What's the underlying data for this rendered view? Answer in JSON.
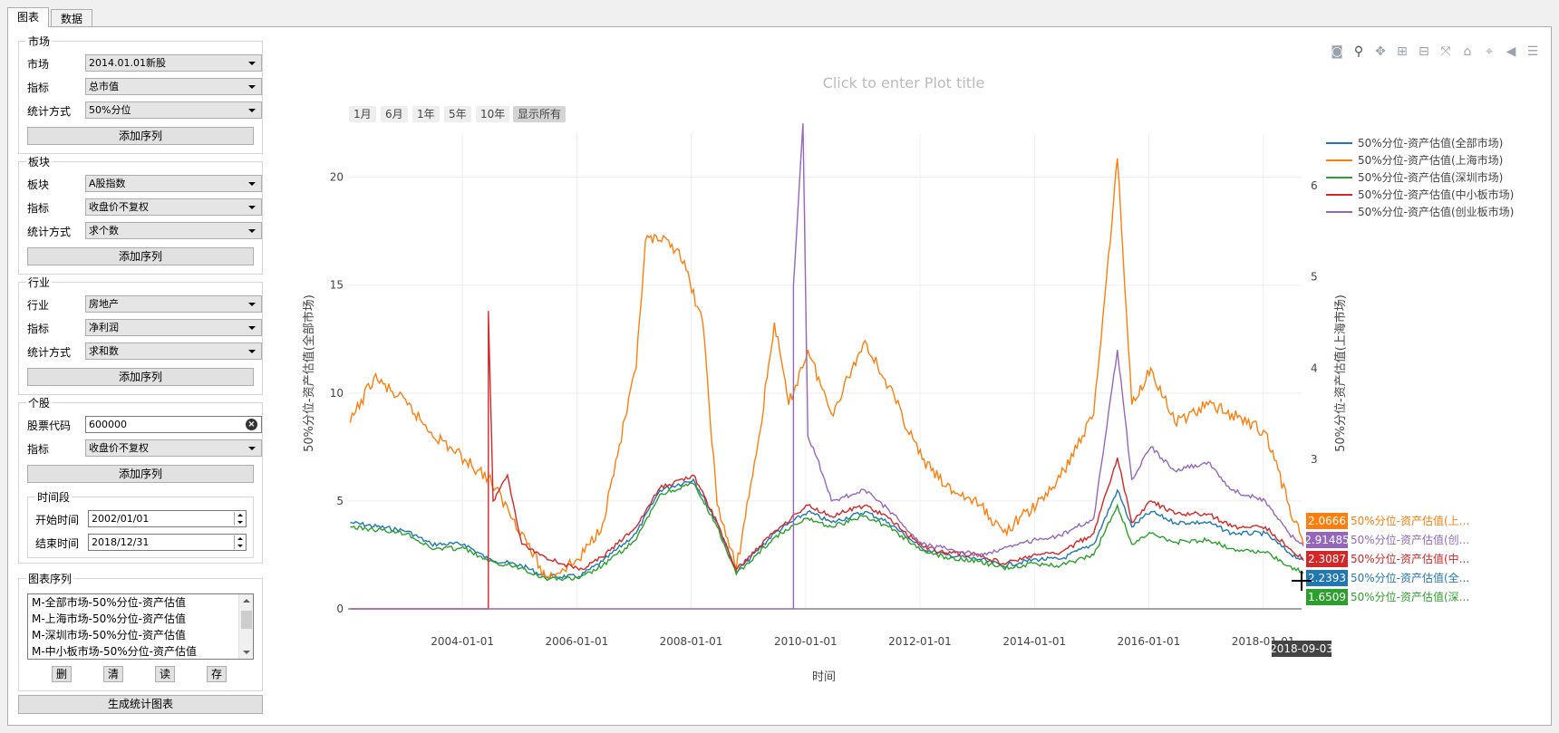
{
  "tabs": [
    "图表",
    "数据"
  ],
  "market": {
    "title": "市场",
    "rows": [
      {
        "label": "市场",
        "value": "2014.01.01新股"
      },
      {
        "label": "指标",
        "value": "总市值"
      },
      {
        "label": "统计方式",
        "value": "50%分位"
      }
    ],
    "add_label": "添加序列"
  },
  "sector": {
    "title": "板块",
    "rows": [
      {
        "label": "板块",
        "value": "A股指数"
      },
      {
        "label": "指标",
        "value": "收盘价不复权"
      },
      {
        "label": "统计方式",
        "value": "求个数"
      }
    ],
    "add_label": "添加序列"
  },
  "industry": {
    "title": "行业",
    "rows": [
      {
        "label": "行业",
        "value": "房地产"
      },
      {
        "label": "指标",
        "value": "净利润"
      },
      {
        "label": "统计方式",
        "value": "求和数"
      }
    ],
    "add_label": "添加序列"
  },
  "stock": {
    "title": "个股",
    "code_label": "股票代码",
    "code_value": "600000",
    "metric_label": "指标",
    "metric_value": "收盘价不复权",
    "add_label": "添加序列",
    "period": {
      "title": "时间段",
      "start_label": "开始时间",
      "start_value": "2002/01/01",
      "end_label": "结束时间",
      "end_value": "2018/12/31"
    }
  },
  "series_group": {
    "title": "图表序列",
    "items": [
      "M-全部市场-50%分位-资产估值",
      "M-上海市场-50%分位-资产估值",
      "M-深圳市场-50%分位-资产估值",
      "M-中小板市场-50%分位-资产估值"
    ],
    "buttons": [
      "删",
      "清",
      "读",
      "存"
    ]
  },
  "generate_label": "生成统计图表",
  "toolbar_icons": [
    "camera-icon",
    "zoom-icon",
    "pan-icon",
    "zoom-in-icon",
    "zoom-out-icon",
    "autoscale-icon",
    "home-icon",
    "spike-icon",
    "hover-closest-icon",
    "hover-compare-icon"
  ],
  "plot_title_placeholder": "Click to enter Plot title",
  "range_buttons": [
    "1月",
    "6月",
    "1年",
    "5年",
    "10年",
    "显示所有"
  ],
  "chart_data": {
    "type": "line",
    "title": "",
    "xlabel": "时间",
    "ylabel_left": "50%分位-资产估值(全部市场)",
    "ylabel_right": "50%分位-资产估值(上海市场)",
    "x_ticks": [
      "2004-01-01",
      "2006-01-01",
      "2008-01-01",
      "2010-01-01",
      "2012-01-01",
      "2014-01-01",
      "2016-01-01",
      "2018-01-01"
    ],
    "y_left_ticks": [
      0,
      5,
      10,
      15,
      20
    ],
    "y_right_ticks": [
      3,
      4,
      5,
      6
    ],
    "xlim": [
      "2002-01-01",
      "2018-09-03"
    ],
    "ylim_left": [
      0,
      22
    ],
    "grid": true,
    "legend_position": "top-right",
    "hover_date": "2018-09-03",
    "series": [
      {
        "name": "50%分位-资产估值(全部市场)",
        "color": "#1f77b4",
        "axis": "left",
        "hover_value": "2.2393",
        "hover_label": "50%分位-资产估值(全...",
        "points": [
          [
            "2002-01",
            4.0
          ],
          [
            "2003-01",
            3.6
          ],
          [
            "2003-06",
            3.0
          ],
          [
            "2004-01",
            3.0
          ],
          [
            "2004-06",
            2.3
          ],
          [
            "2005-01",
            2.0
          ],
          [
            "2005-06",
            1.5
          ],
          [
            "2006-01",
            1.5
          ],
          [
            "2006-06",
            2.2
          ],
          [
            "2007-01",
            3.5
          ],
          [
            "2007-06",
            5.5
          ],
          [
            "2008-01",
            6.0
          ],
          [
            "2008-06",
            4.0
          ],
          [
            "2008-10",
            1.7
          ],
          [
            "2009-06",
            3.5
          ],
          [
            "2010-01",
            4.5
          ],
          [
            "2010-06",
            4.0
          ],
          [
            "2011-01",
            4.5
          ],
          [
            "2011-06",
            4.0
          ],
          [
            "2012-01",
            2.8
          ],
          [
            "2012-06",
            2.5
          ],
          [
            "2013-01",
            2.3
          ],
          [
            "2013-06",
            2.0
          ],
          [
            "2014-01",
            2.3
          ],
          [
            "2014-06",
            2.3
          ],
          [
            "2015-01",
            3.0
          ],
          [
            "2015-06",
            5.5
          ],
          [
            "2015-09",
            3.8
          ],
          [
            "2016-01",
            4.5
          ],
          [
            "2016-06",
            4.0
          ],
          [
            "2017-01",
            4.0
          ],
          [
            "2017-06",
            3.5
          ],
          [
            "2018-01",
            3.5
          ],
          [
            "2018-06",
            2.6
          ],
          [
            "2018-09",
            2.24
          ]
        ]
      },
      {
        "name": "50%分位-资产估值(上海市场)",
        "color": "#ff7f0e",
        "axis": "right",
        "hover_value": "2.0666",
        "hover_label": "50%分位-资产估值(上...",
        "points": [
          [
            "2002-01",
            3.4
          ],
          [
            "2002-06",
            3.9
          ],
          [
            "2003-01",
            3.6
          ],
          [
            "2003-06",
            3.3
          ],
          [
            "2004-01",
            3.0
          ],
          [
            "2004-06",
            2.8
          ],
          [
            "2005-01",
            2.2
          ],
          [
            "2005-06",
            1.7
          ],
          [
            "2006-01",
            1.9
          ],
          [
            "2006-06",
            2.3
          ],
          [
            "2007-01",
            4.0
          ],
          [
            "2007-03",
            5.4
          ],
          [
            "2007-06",
            5.4
          ],
          [
            "2007-10",
            5.3
          ],
          [
            "2008-03",
            4.5
          ],
          [
            "2008-06",
            2.5
          ],
          [
            "2008-10",
            1.8
          ],
          [
            "2009-03",
            3.3
          ],
          [
            "2009-06",
            4.5
          ],
          [
            "2009-09",
            3.6
          ],
          [
            "2010-01",
            4.2
          ],
          [
            "2010-06",
            3.5
          ],
          [
            "2011-01",
            4.3
          ],
          [
            "2011-06",
            3.8
          ],
          [
            "2012-01",
            3.0
          ],
          [
            "2012-06",
            2.7
          ],
          [
            "2013-01",
            2.5
          ],
          [
            "2013-06",
            2.2
          ],
          [
            "2014-01",
            2.5
          ],
          [
            "2014-06",
            2.8
          ],
          [
            "2015-01",
            3.5
          ],
          [
            "2015-06",
            6.3
          ],
          [
            "2015-09",
            3.6
          ],
          [
            "2016-01",
            4.0
          ],
          [
            "2016-06",
            3.4
          ],
          [
            "2017-01",
            3.6
          ],
          [
            "2017-06",
            3.5
          ],
          [
            "2018-01",
            3.3
          ],
          [
            "2018-06",
            2.5
          ],
          [
            "2018-09",
            2.07
          ]
        ]
      },
      {
        "name": "50%分位-资产估值(深圳市场)",
        "color": "#2ca02c",
        "axis": "left",
        "hover_value": "1.6509",
        "hover_label": "50%分位-资产估值(深...",
        "points": [
          [
            "2002-01",
            3.8
          ],
          [
            "2003-01",
            3.5
          ],
          [
            "2003-06",
            2.8
          ],
          [
            "2004-01",
            2.8
          ],
          [
            "2004-06",
            2.2
          ],
          [
            "2005-01",
            1.9
          ],
          [
            "2005-06",
            1.4
          ],
          [
            "2006-01",
            1.4
          ],
          [
            "2006-06",
            2.0
          ],
          [
            "2007-01",
            3.2
          ],
          [
            "2007-06",
            5.3
          ],
          [
            "2008-01",
            5.8
          ],
          [
            "2008-06",
            3.8
          ],
          [
            "2008-10",
            1.6
          ],
          [
            "2009-06",
            3.3
          ],
          [
            "2010-01",
            4.2
          ],
          [
            "2010-06",
            3.8
          ],
          [
            "2011-01",
            4.3
          ],
          [
            "2011-06",
            3.8
          ],
          [
            "2012-01",
            2.7
          ],
          [
            "2012-06",
            2.4
          ],
          [
            "2013-01",
            2.2
          ],
          [
            "2013-06",
            1.9
          ],
          [
            "2014-01",
            2.1
          ],
          [
            "2014-06",
            2.0
          ],
          [
            "2015-01",
            2.5
          ],
          [
            "2015-06",
            4.8
          ],
          [
            "2015-09",
            3.0
          ],
          [
            "2016-01",
            3.5
          ],
          [
            "2016-06",
            3.1
          ],
          [
            "2017-01",
            3.2
          ],
          [
            "2017-06",
            2.8
          ],
          [
            "2018-01",
            2.6
          ],
          [
            "2018-06",
            2.0
          ],
          [
            "2018-09",
            1.65
          ]
        ]
      },
      {
        "name": "50%分位-资产估值(中小板市场)",
        "color": "#d62728",
        "axis": "left",
        "hover_value": "2.3087",
        "hover_label": "50%分位-资产估值(中...",
        "points": [
          [
            "2002-01",
            0
          ],
          [
            "2004-06",
            0
          ],
          [
            "2004-06",
            13.8
          ],
          [
            "2004-07",
            5.0
          ],
          [
            "2004-10",
            6.2
          ],
          [
            "2005-01",
            3.0
          ],
          [
            "2005-06",
            2.4
          ],
          [
            "2006-01",
            1.8
          ],
          [
            "2006-06",
            2.4
          ],
          [
            "2007-01",
            3.8
          ],
          [
            "2007-06",
            5.6
          ],
          [
            "2008-01",
            6.2
          ],
          [
            "2008-06",
            4.0
          ],
          [
            "2008-10",
            1.8
          ],
          [
            "2009-06",
            3.6
          ],
          [
            "2010-01",
            4.8
          ],
          [
            "2010-06",
            4.3
          ],
          [
            "2011-01",
            4.8
          ],
          [
            "2011-06",
            4.2
          ],
          [
            "2012-01",
            2.9
          ],
          [
            "2012-06",
            2.6
          ],
          [
            "2013-01",
            2.5
          ],
          [
            "2013-06",
            2.1
          ],
          [
            "2014-01",
            2.5
          ],
          [
            "2014-06",
            2.6
          ],
          [
            "2015-01",
            3.5
          ],
          [
            "2015-06",
            7.0
          ],
          [
            "2015-09",
            4.0
          ],
          [
            "2016-01",
            5.0
          ],
          [
            "2016-06",
            4.4
          ],
          [
            "2017-01",
            4.4
          ],
          [
            "2017-06",
            3.8
          ],
          [
            "2018-01",
            3.8
          ],
          [
            "2018-06",
            2.8
          ],
          [
            "2018-09",
            2.31
          ]
        ]
      },
      {
        "name": "50%分位-资产估值(创业板市场)",
        "color": "#9467bd",
        "axis": "left",
        "hover_value": "2.91485",
        "hover_label": "50%分位-资产估值(创...",
        "points": [
          [
            "2002-01",
            0
          ],
          [
            "2009-10",
            0
          ],
          [
            "2009-10",
            15.0
          ],
          [
            "2009-12",
            22.5
          ],
          [
            "2010-01",
            8.0
          ],
          [
            "2010-03",
            7.0
          ],
          [
            "2010-06",
            5.0
          ],
          [
            "2011-01",
            5.5
          ],
          [
            "2011-06",
            4.6
          ],
          [
            "2012-01",
            3.0
          ],
          [
            "2012-06",
            2.8
          ],
          [
            "2013-01",
            2.5
          ],
          [
            "2013-06",
            2.8
          ],
          [
            "2014-01",
            3.2
          ],
          [
            "2014-06",
            3.4
          ],
          [
            "2015-01",
            4.2
          ],
          [
            "2015-06",
            12.0
          ],
          [
            "2015-09",
            6.0
          ],
          [
            "2016-01",
            7.5
          ],
          [
            "2016-06",
            6.4
          ],
          [
            "2017-01",
            6.8
          ],
          [
            "2017-06",
            5.5
          ],
          [
            "2018-01",
            5.0
          ],
          [
            "2018-06",
            3.5
          ],
          [
            "2018-09",
            2.91
          ]
        ]
      }
    ]
  }
}
